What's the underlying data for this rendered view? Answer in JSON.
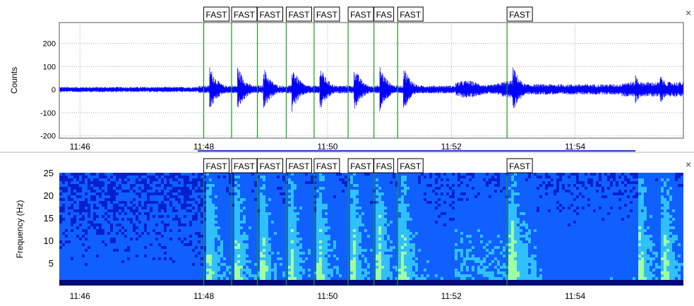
{
  "top_panel": {
    "close_label": "×",
    "chart_data": {
      "type": "line",
      "title": "",
      "xlabel": "",
      "ylabel": "Counts",
      "x_ticks": [
        "11:46",
        "11:48",
        "11:50",
        "11:52",
        "11:54"
      ],
      "y_ticks": [
        200,
        100,
        0,
        -100,
        -200
      ],
      "ylim": [
        -210,
        290
      ],
      "xlim": [
        "11:45:40",
        "11:55:45"
      ],
      "grid": true,
      "series_color": "#0000ff",
      "event_times": [
        "11:48:00",
        "11:48:27",
        "11:48:52",
        "11:49:20",
        "11:49:47",
        "11:50:20",
        "11:50:45",
        "11:51:08",
        "11:52:54"
      ],
      "event_labels": [
        "FAST",
        "FAST",
        "FAST",
        "FAST",
        "FAST",
        "FAST",
        "FAS",
        "FAST",
        "FAST"
      ]
    }
  },
  "bottom_panel": {
    "close_label": "×",
    "chart_data": {
      "type": "heatmap",
      "title": "",
      "xlabel": "",
      "ylabel": "Frequency (Hz)",
      "x_ticks": [
        "11:46",
        "11:48",
        "11:50",
        "11:52",
        "11:54"
      ],
      "y_ticks": [
        25,
        20,
        15,
        10,
        5
      ],
      "ylim": [
        0,
        25
      ],
      "colormap": [
        "#000a7a",
        "#0020d0",
        "#1060ff",
        "#30c0ff",
        "#a0ffa0"
      ],
      "event_times": [
        "11:48:00",
        "11:48:27",
        "11:48:52",
        "11:49:20",
        "11:49:47",
        "11:50:20",
        "11:50:45",
        "11:51:08",
        "11:52:54"
      ],
      "event_labels": [
        "FAST",
        "FAST",
        "FAST",
        "FAST",
        "FAST",
        "FAST",
        "FAS",
        "FAST",
        "FAST"
      ]
    }
  }
}
